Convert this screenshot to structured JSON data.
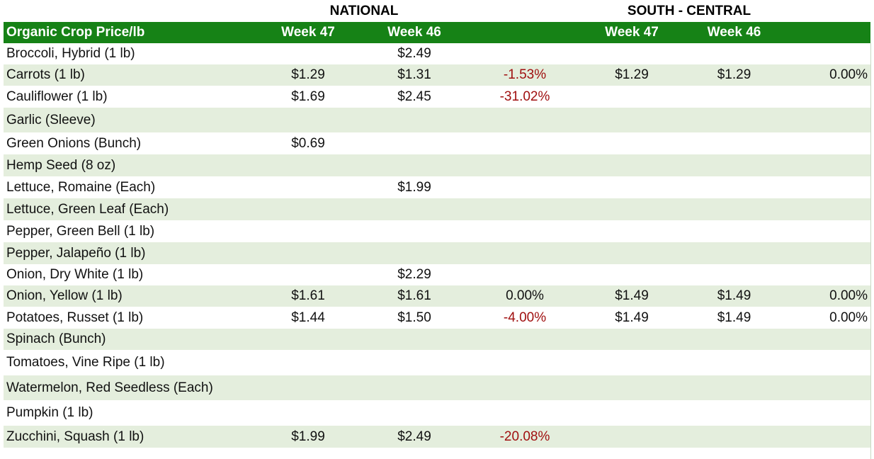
{
  "groups": {
    "national": "NATIONAL",
    "south_central": "SOUTH - CENTRAL"
  },
  "columns": {
    "item": "Organic Crop Price/lb",
    "nat_week47": "Week 47",
    "nat_week46": "Week 46",
    "sc_week47": "Week 47",
    "sc_week46": "Week 46"
  },
  "rows": [
    {
      "name": "Broccoli, Hybrid (1 lb)",
      "nat_w47": "",
      "nat_w46": "$2.49",
      "nat_change": "",
      "sc_w47": "",
      "sc_w46": "",
      "sc_change": ""
    },
    {
      "name": "Carrots (1 lb)",
      "nat_w47": "$1.29",
      "nat_w46": "$1.31",
      "nat_change": "-1.53%",
      "sc_w47": "$1.29",
      "sc_w46": "$1.29",
      "sc_change": "0.00%"
    },
    {
      "name": "Cauliflower (1 lb)",
      "nat_w47": "$1.69",
      "nat_w46": "$2.45",
      "nat_change": "-31.02%",
      "sc_w47": "",
      "sc_w46": "",
      "sc_change": ""
    },
    {
      "name": "Garlic (Sleeve)",
      "nat_w47": "",
      "nat_w46": "",
      "nat_change": "",
      "sc_w47": "",
      "sc_w46": "",
      "sc_change": ""
    },
    {
      "name": "Green Onions (Bunch)",
      "nat_w47": "$0.69",
      "nat_w46": "",
      "nat_change": "",
      "sc_w47": "",
      "sc_w46": "",
      "sc_change": ""
    },
    {
      "name": "Hemp Seed (8 oz)",
      "nat_w47": "",
      "nat_w46": "",
      "nat_change": "",
      "sc_w47": "",
      "sc_w46": "",
      "sc_change": ""
    },
    {
      "name": "Lettuce, Romaine (Each)",
      "nat_w47": "",
      "nat_w46": "$1.99",
      "nat_change": "",
      "sc_w47": "",
      "sc_w46": "",
      "sc_change": ""
    },
    {
      "name": "Lettuce, Green Leaf (Each)",
      "nat_w47": "",
      "nat_w46": "",
      "nat_change": "",
      "sc_w47": "",
      "sc_w46": "",
      "sc_change": ""
    },
    {
      "name": "Pepper, Green Bell (1 lb)",
      "nat_w47": "",
      "nat_w46": "",
      "nat_change": "",
      "sc_w47": "",
      "sc_w46": "",
      "sc_change": ""
    },
    {
      "name": "Pepper, Jalapeño (1 lb)",
      "nat_w47": "",
      "nat_w46": "",
      "nat_change": "",
      "sc_w47": "",
      "sc_w46": "",
      "sc_change": ""
    },
    {
      "name": "Onion, Dry White (1 lb)",
      "nat_w47": "",
      "nat_w46": "$2.29",
      "nat_change": "",
      "sc_w47": "",
      "sc_w46": "",
      "sc_change": ""
    },
    {
      "name": "Onion, Yellow (1 lb)",
      "nat_w47": "$1.61",
      "nat_w46": "$1.61",
      "nat_change": "0.00%",
      "sc_w47": "$1.49",
      "sc_w46": "$1.49",
      "sc_change": "0.00%"
    },
    {
      "name": "Potatoes, Russet (1 lb)",
      "nat_w47": "$1.44",
      "nat_w46": "$1.50",
      "nat_change": "-4.00%",
      "sc_w47": "$1.49",
      "sc_w46": "$1.49",
      "sc_change": "0.00%"
    },
    {
      "name": "Spinach (Bunch)",
      "nat_w47": "",
      "nat_w46": "",
      "nat_change": "",
      "sc_w47": "",
      "sc_w46": "",
      "sc_change": ""
    },
    {
      "name": "Tomatoes, Vine Ripe (1 lb)",
      "nat_w47": "",
      "nat_w46": "",
      "nat_change": "",
      "sc_w47": "",
      "sc_w46": "",
      "sc_change": ""
    },
    {
      "name": "Watermelon, Red Seedless (Each)",
      "nat_w47": "",
      "nat_w46": "",
      "nat_change": "",
      "sc_w47": "",
      "sc_w46": "",
      "sc_change": ""
    },
    {
      "name": "Pumpkin (1 lb)",
      "nat_w47": "",
      "nat_w46": "",
      "nat_change": "",
      "sc_w47": "",
      "sc_w46": "",
      "sc_change": ""
    },
    {
      "name": "Zucchini, Squash (1 lb)",
      "nat_w47": "$1.99",
      "nat_w46": "$2.49",
      "nat_change": "-20.08%",
      "sc_w47": "",
      "sc_w46": "",
      "sc_change": ""
    }
  ],
  "colors": {
    "header_bg": "#168216",
    "header_text": "#ffffff",
    "band": "#e4eedd",
    "negative": "#a01010"
  }
}
